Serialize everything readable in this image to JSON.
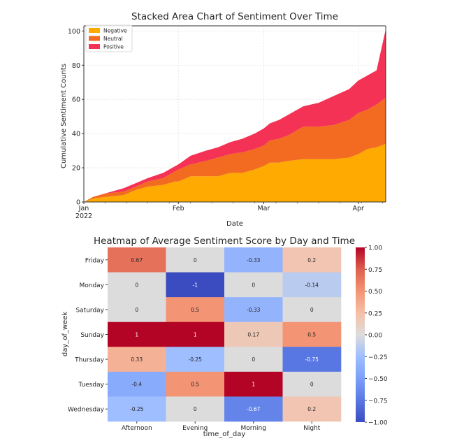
{
  "chart_data": [
    {
      "type": "area",
      "stacked": true,
      "title": "Stacked Area Chart of Sentiment Over Time",
      "xlabel": "Date",
      "ylabel": "Cumulative Sentiment Counts",
      "x_ticks": [
        "Jan\n2022",
        "Feb",
        "Mar",
        "Apr"
      ],
      "x": [
        "2022-01-01",
        "2022-01-04",
        "2022-01-08",
        "2022-01-14",
        "2022-01-18",
        "2022-01-22",
        "2022-01-27",
        "2022-01-31",
        "2022-02-01",
        "2022-02-05",
        "2022-02-10",
        "2022-02-14",
        "2022-02-18",
        "2022-02-22",
        "2022-02-26",
        "2022-03-01",
        "2022-03-03",
        "2022-03-06",
        "2022-03-09",
        "2022-03-14",
        "2022-03-19",
        "2022-03-24",
        "2022-03-29",
        "2022-04-01",
        "2022-04-04",
        "2022-04-07",
        "2022-04-10"
      ],
      "y_ticks": [
        0,
        20,
        40,
        60,
        80,
        100
      ],
      "ylim": [
        0,
        103
      ],
      "xlim": [
        "2022-01-01",
        "2022-04-10"
      ],
      "grid": true,
      "legend_position": "top-left",
      "series": [
        {
          "name": "Negative",
          "color": "#ffaa00",
          "values": [
            0,
            2,
            3,
            4,
            7,
            9,
            10,
            12,
            12,
            15,
            15,
            15,
            17,
            17,
            19,
            21,
            23,
            23,
            24,
            25,
            25,
            25,
            26,
            28,
            31,
            32,
            34
          ]
        },
        {
          "name": "Neutral",
          "color": "#f26b20",
          "values": [
            0,
            1,
            2,
            2,
            2,
            3,
            4,
            6,
            7,
            7,
            9,
            11,
            11,
            12,
            12,
            12,
            13,
            14,
            15,
            19,
            19,
            20,
            22,
            24,
            23,
            25,
            27
          ]
        },
        {
          "name": "Positive",
          "color": "#f43255",
          "values": [
            0,
            0,
            0,
            2,
            2,
            2,
            3,
            3,
            3,
            5,
            6,
            6,
            7,
            8,
            9,
            10,
            10,
            11,
            12,
            12,
            14,
            17,
            18,
            19,
            20,
            20,
            40
          ]
        }
      ]
    },
    {
      "type": "heatmap",
      "title": "Heatmap of Average Sentiment Score by Day and Time",
      "xlabel": "time_of_day",
      "ylabel": "day_of_week",
      "columns": [
        "Afternoon",
        "Evening",
        "Morning",
        "Night"
      ],
      "rows": [
        "Friday",
        "Monday",
        "Saturday",
        "Sunday",
        "Thursday",
        "Tuesday",
        "Wednesday"
      ],
      "values": [
        [
          0.67,
          0,
          -0.33,
          0.2
        ],
        [
          0,
          -1,
          0,
          -0.14
        ],
        [
          0,
          0.5,
          -0.33,
          0
        ],
        [
          1,
          1,
          0.17,
          0.5
        ],
        [
          0.33,
          -0.25,
          0,
          -0.75
        ],
        [
          -0.4,
          0.5,
          1,
          0
        ],
        [
          -0.25,
          0,
          -0.67,
          0.2
        ]
      ],
      "value_labels": [
        [
          "0.67",
          "0",
          "-0.33",
          "0.2"
        ],
        [
          "0",
          "-1",
          "0",
          "-0.14"
        ],
        [
          "0",
          "0.5",
          "-0.33",
          "0"
        ],
        [
          "1",
          "1",
          "0.17",
          "0.5"
        ],
        [
          "0.33",
          "-0.25",
          "0",
          "-0.75"
        ],
        [
          "-0.4",
          "0.5",
          "1",
          "0"
        ],
        [
          "-0.25",
          "0",
          "-0.67",
          "0.2"
        ]
      ],
      "colorbar": {
        "min": -1,
        "max": 1,
        "ticks": [
          "1.00",
          "0.75",
          "0.50",
          "0.25",
          "0.00",
          "−0.25",
          "−0.50",
          "−0.75",
          "−1.00"
        ],
        "colormap": "coolwarm"
      }
    }
  ]
}
